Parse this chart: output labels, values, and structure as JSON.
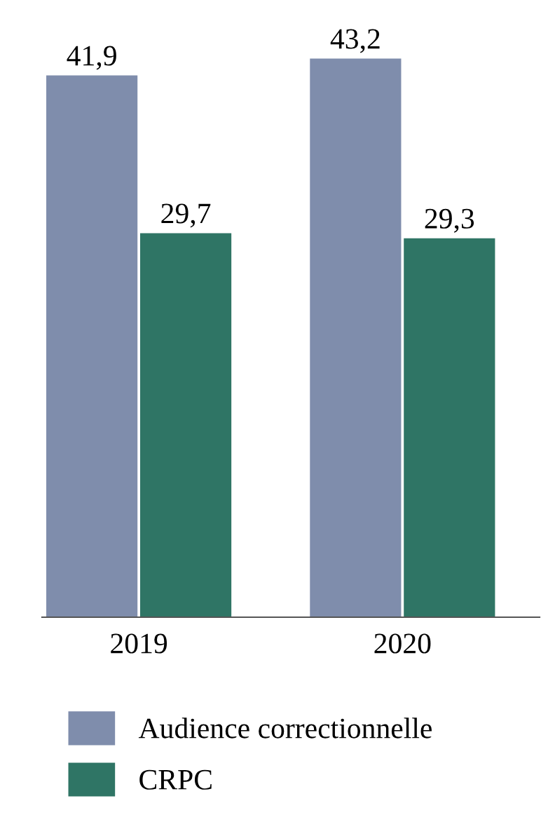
{
  "chart_data": {
    "type": "bar",
    "categories": [
      "2019",
      "2020"
    ],
    "series": [
      {
        "name": "Audience correctionnelle",
        "color": "#7f8dac",
        "values": [
          41.9,
          43.2
        ],
        "value_labels": [
          "41,9",
          "43,2"
        ]
      },
      {
        "name": "CRPC",
        "color": "#2f7565",
        "values": [
          29.7,
          29.3
        ],
        "value_labels": [
          "29,7",
          "29,3"
        ]
      }
    ],
    "legend": "bottom",
    "grid": false
  }
}
